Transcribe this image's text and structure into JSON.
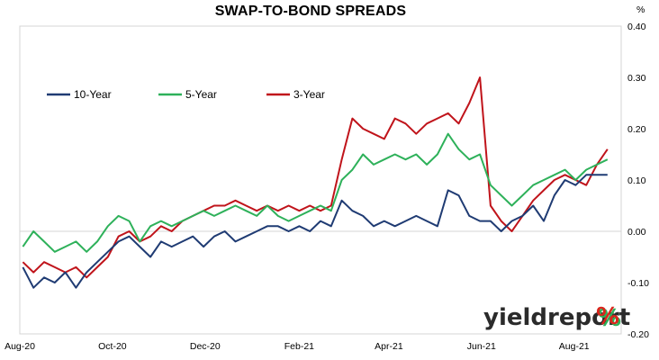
{
  "chart_data": {
    "type": "line",
    "title": "SWAP-TO-BOND SPREADS",
    "ylabel": "%",
    "ylim": [
      -0.2,
      0.4
    ],
    "y_ticks": [
      "0.40",
      "0.30",
      "0.20",
      "0.10",
      "0.00",
      "-0.10",
      "-0.20"
    ],
    "x_ticks": [
      "Aug-20",
      "Oct-20",
      "Dec-20",
      "Feb-21",
      "Apr-21",
      "Jun-21",
      "Aug-21"
    ],
    "legend_position": "top-left inside",
    "grid": false,
    "series": [
      {
        "name": "10-Year",
        "color": "#1f3b73",
        "points": [
          [
            "2020-08-03",
            -0.07
          ],
          [
            "2020-08-10",
            -0.11
          ],
          [
            "2020-08-17",
            -0.09
          ],
          [
            "2020-08-24",
            -0.1
          ],
          [
            "2020-08-31",
            -0.08
          ],
          [
            "2020-09-07",
            -0.11
          ],
          [
            "2020-09-14",
            -0.08
          ],
          [
            "2020-09-21",
            -0.06
          ],
          [
            "2020-09-28",
            -0.04
          ],
          [
            "2020-10-05",
            -0.02
          ],
          [
            "2020-10-12",
            -0.01
          ],
          [
            "2020-10-19",
            -0.03
          ],
          [
            "2020-10-26",
            -0.05
          ],
          [
            "2020-11-02",
            -0.02
          ],
          [
            "2020-11-09",
            -0.03
          ],
          [
            "2020-11-16",
            -0.02
          ],
          [
            "2020-11-23",
            -0.01
          ],
          [
            "2020-11-30",
            -0.03
          ],
          [
            "2020-12-07",
            -0.01
          ],
          [
            "2020-12-14",
            0.0
          ],
          [
            "2020-12-21",
            -0.02
          ],
          [
            "2020-12-28",
            -0.01
          ],
          [
            "2021-01-04",
            0.0
          ],
          [
            "2021-01-11",
            0.01
          ],
          [
            "2021-01-18",
            0.01
          ],
          [
            "2021-01-25",
            0.0
          ],
          [
            "2021-02-01",
            0.01
          ],
          [
            "2021-02-08",
            0.0
          ],
          [
            "2021-02-15",
            0.02
          ],
          [
            "2021-02-22",
            0.01
          ],
          [
            "2021-03-01",
            0.06
          ],
          [
            "2021-03-08",
            0.04
          ],
          [
            "2021-03-15",
            0.03
          ],
          [
            "2021-03-22",
            0.01
          ],
          [
            "2021-03-29",
            0.02
          ],
          [
            "2021-04-05",
            0.01
          ],
          [
            "2021-04-12",
            0.02
          ],
          [
            "2021-04-19",
            0.03
          ],
          [
            "2021-04-26",
            0.02
          ],
          [
            "2021-05-03",
            0.01
          ],
          [
            "2021-05-10",
            0.08
          ],
          [
            "2021-05-17",
            0.07
          ],
          [
            "2021-05-24",
            0.03
          ],
          [
            "2021-05-31",
            0.02
          ],
          [
            "2021-06-07",
            0.02
          ],
          [
            "2021-06-14",
            0.0
          ],
          [
            "2021-06-21",
            0.02
          ],
          [
            "2021-06-28",
            0.03
          ],
          [
            "2021-07-05",
            0.05
          ],
          [
            "2021-07-12",
            0.02
          ],
          [
            "2021-07-19",
            0.07
          ],
          [
            "2021-07-26",
            0.1
          ],
          [
            "2021-08-02",
            0.09
          ],
          [
            "2021-08-09",
            0.11
          ],
          [
            "2021-08-16",
            0.11
          ],
          [
            "2021-08-23",
            0.11
          ]
        ]
      },
      {
        "name": "5-Year",
        "color": "#2eb15a",
        "points": [
          [
            "2020-08-03",
            -0.03
          ],
          [
            "2020-08-10",
            0.0
          ],
          [
            "2020-08-17",
            -0.02
          ],
          [
            "2020-08-24",
            -0.04
          ],
          [
            "2020-08-31",
            -0.03
          ],
          [
            "2020-09-07",
            -0.02
          ],
          [
            "2020-09-14",
            -0.04
          ],
          [
            "2020-09-21",
            -0.02
          ],
          [
            "2020-09-28",
            0.01
          ],
          [
            "2020-10-05",
            0.03
          ],
          [
            "2020-10-12",
            0.02
          ],
          [
            "2020-10-19",
            -0.02
          ],
          [
            "2020-10-26",
            0.01
          ],
          [
            "2020-11-02",
            0.02
          ],
          [
            "2020-11-09",
            0.01
          ],
          [
            "2020-11-16",
            0.02
          ],
          [
            "2020-11-23",
            0.03
          ],
          [
            "2020-11-30",
            0.04
          ],
          [
            "2020-12-07",
            0.03
          ],
          [
            "2020-12-14",
            0.04
          ],
          [
            "2020-12-21",
            0.05
          ],
          [
            "2020-12-28",
            0.04
          ],
          [
            "2021-01-04",
            0.03
          ],
          [
            "2021-01-11",
            0.05
          ],
          [
            "2021-01-18",
            0.03
          ],
          [
            "2021-01-25",
            0.02
          ],
          [
            "2021-02-01",
            0.03
          ],
          [
            "2021-02-08",
            0.04
          ],
          [
            "2021-02-15",
            0.05
          ],
          [
            "2021-02-22",
            0.04
          ],
          [
            "2021-03-01",
            0.1
          ],
          [
            "2021-03-08",
            0.12
          ],
          [
            "2021-03-15",
            0.15
          ],
          [
            "2021-03-22",
            0.13
          ],
          [
            "2021-03-29",
            0.14
          ],
          [
            "2021-04-05",
            0.15
          ],
          [
            "2021-04-12",
            0.14
          ],
          [
            "2021-04-19",
            0.15
          ],
          [
            "2021-04-26",
            0.13
          ],
          [
            "2021-05-03",
            0.15
          ],
          [
            "2021-05-10",
            0.19
          ],
          [
            "2021-05-17",
            0.16
          ],
          [
            "2021-05-24",
            0.14
          ],
          [
            "2021-05-31",
            0.15
          ],
          [
            "2021-06-07",
            0.09
          ],
          [
            "2021-06-14",
            0.07
          ],
          [
            "2021-06-21",
            0.05
          ],
          [
            "2021-06-28",
            0.07
          ],
          [
            "2021-07-05",
            0.09
          ],
          [
            "2021-07-12",
            0.1
          ],
          [
            "2021-07-19",
            0.11
          ],
          [
            "2021-07-26",
            0.12
          ],
          [
            "2021-08-02",
            0.1
          ],
          [
            "2021-08-09",
            0.12
          ],
          [
            "2021-08-16",
            0.13
          ],
          [
            "2021-08-23",
            0.14
          ]
        ]
      },
      {
        "name": "3-Year",
        "color": "#c0141b",
        "points": [
          [
            "2020-08-03",
            -0.06
          ],
          [
            "2020-08-10",
            -0.08
          ],
          [
            "2020-08-17",
            -0.06
          ],
          [
            "2020-08-24",
            -0.07
          ],
          [
            "2020-08-31",
            -0.08
          ],
          [
            "2020-09-07",
            -0.07
          ],
          [
            "2020-09-14",
            -0.09
          ],
          [
            "2020-09-21",
            -0.07
          ],
          [
            "2020-09-28",
            -0.05
          ],
          [
            "2020-10-05",
            -0.01
          ],
          [
            "2020-10-12",
            0.0
          ],
          [
            "2020-10-19",
            -0.02
          ],
          [
            "2020-10-26",
            -0.01
          ],
          [
            "2020-11-02",
            0.01
          ],
          [
            "2020-11-09",
            0.0
          ],
          [
            "2020-11-16",
            0.02
          ],
          [
            "2020-11-23",
            0.03
          ],
          [
            "2020-11-30",
            0.04
          ],
          [
            "2020-12-07",
            0.05
          ],
          [
            "2020-12-14",
            0.05
          ],
          [
            "2020-12-21",
            0.06
          ],
          [
            "2020-12-28",
            0.05
          ],
          [
            "2021-01-04",
            0.04
          ],
          [
            "2021-01-11",
            0.05
          ],
          [
            "2021-01-18",
            0.04
          ],
          [
            "2021-01-25",
            0.05
          ],
          [
            "2021-02-01",
            0.04
          ],
          [
            "2021-02-08",
            0.05
          ],
          [
            "2021-02-15",
            0.04
          ],
          [
            "2021-02-22",
            0.05
          ],
          [
            "2021-03-01",
            0.14
          ],
          [
            "2021-03-08",
            0.22
          ],
          [
            "2021-03-15",
            0.2
          ],
          [
            "2021-03-22",
            0.19
          ],
          [
            "2021-03-29",
            0.18
          ],
          [
            "2021-04-05",
            0.22
          ],
          [
            "2021-04-12",
            0.21
          ],
          [
            "2021-04-19",
            0.19
          ],
          [
            "2021-04-26",
            0.21
          ],
          [
            "2021-05-03",
            0.22
          ],
          [
            "2021-05-10",
            0.23
          ],
          [
            "2021-05-17",
            0.21
          ],
          [
            "2021-05-24",
            0.25
          ],
          [
            "2021-05-31",
            0.3
          ],
          [
            "2021-06-07",
            0.05
          ],
          [
            "2021-06-14",
            0.02
          ],
          [
            "2021-06-21",
            0.0
          ],
          [
            "2021-06-28",
            0.03
          ],
          [
            "2021-07-05",
            0.06
          ],
          [
            "2021-07-12",
            0.08
          ],
          [
            "2021-07-19",
            0.1
          ],
          [
            "2021-07-26",
            0.11
          ],
          [
            "2021-08-02",
            0.1
          ],
          [
            "2021-08-09",
            0.09
          ],
          [
            "2021-08-16",
            0.13
          ],
          [
            "2021-08-23",
            0.16
          ]
        ]
      }
    ]
  },
  "watermark": {
    "text": "yieldreport",
    "symbol": "%",
    "text_color": "#2b2b2b",
    "symbol_color": "#d9261c",
    "symbol_shadow_color": "#2eb15a"
  }
}
